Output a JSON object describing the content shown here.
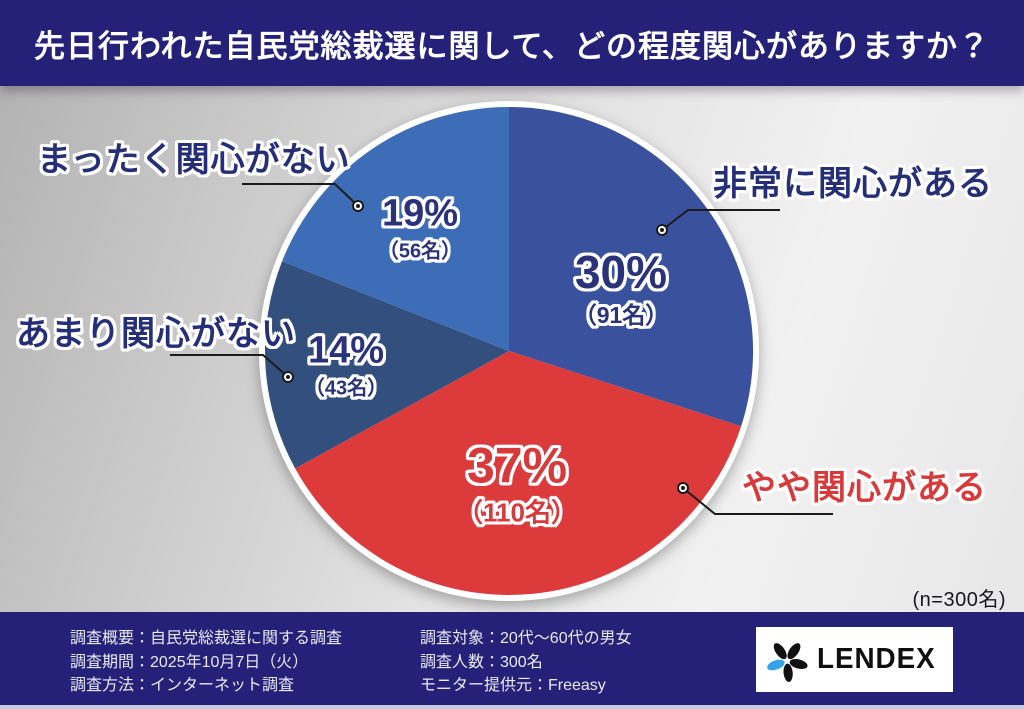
{
  "header": {
    "title": "先日行われた自民党総裁選に関して、どの程度関心がありますか？"
  },
  "chart_data": {
    "type": "pie",
    "title": "先日行われた自民党総裁選に関して、どの程度関心がありますか？",
    "n_total": 300,
    "n_label": "(n=300名)",
    "start_angle": "top",
    "direction": "clockwise",
    "slices": [
      {
        "label": "非常に関心がある",
        "pct": 30,
        "pct_label": "30%",
        "count": 91,
        "count_label": "（91名）",
        "color": "#3A529E",
        "text_color": "#29327A"
      },
      {
        "label": "やや関心がある",
        "pct": 37,
        "pct_label": "37%",
        "count": 110,
        "count_label": "（110名）",
        "color": "#DD3A3C",
        "text_color": "#D8393B"
      },
      {
        "label": "あまり関心がない",
        "pct": 14,
        "pct_label": "14%",
        "count": 43,
        "count_label": "（43名）",
        "color": "#334F7D",
        "text_color": "#29327A"
      },
      {
        "label": "まったく関心がない",
        "pct": 19,
        "pct_label": "19%",
        "count": 56,
        "count_label": "（56名）",
        "color": "#3C6DB6",
        "text_color": "#29327A"
      }
    ]
  },
  "footer": {
    "left_lines": [
      "調査概要：自民党総裁選に関する調査",
      "調査期間：2025年10月7日（火）",
      "調査方法：インターネット調査"
    ],
    "right_lines": [
      "調査対象：20代〜60代の男女",
      "調査人数：300名",
      "モニター提供元：Freeasy"
    ],
    "logo_text": "LENDEX"
  },
  "colors": {
    "banner": "#252179",
    "background_gray": "#d9d9d9",
    "logo_petal_black": "#111111",
    "logo_petal_blue": "#35A3E8",
    "callout_line": "#1b1b1b"
  }
}
